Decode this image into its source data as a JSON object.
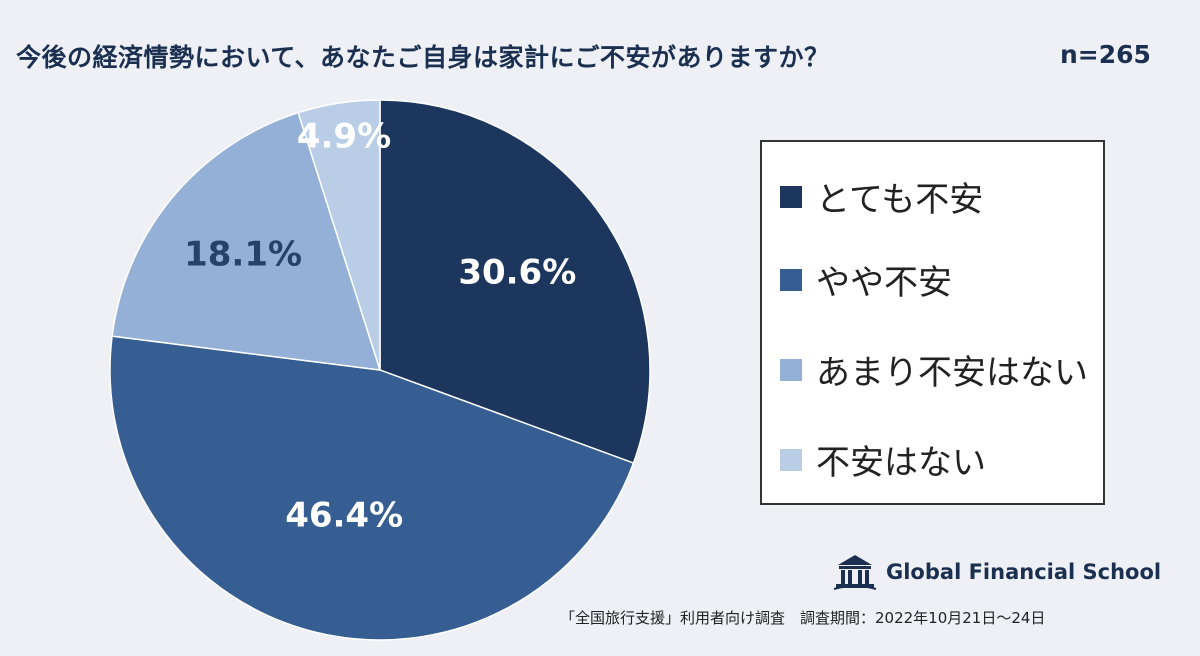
{
  "header": {
    "title": "今後の経済情勢において、あなたご自身は家計にご不安がありますか？",
    "sample_size": "n=265"
  },
  "chart_data": {
    "type": "pie",
    "start_angle_deg": 0,
    "direction": "clockwise",
    "categories": [
      "とても不安",
      "やや不安",
      "あまり不安はない",
      "不安はない"
    ],
    "values": [
      30.6,
      46.4,
      18.1,
      4.9
    ],
    "value_labels": [
      "30.6%",
      "46.4%",
      "18.1%",
      "4.9%"
    ],
    "colors": [
      "#1c365e",
      "#365e92",
      "#95b0d6",
      "#b9cde6"
    ],
    "label_colors": [
      "#ffffff",
      "#ffffff",
      "#26426b",
      "#ffffff"
    ],
    "legend_position": "right"
  },
  "legend": {
    "items": [
      {
        "label": "とても不安",
        "color": "#1c365e"
      },
      {
        "label": "やや不安",
        "color": "#365e92"
      },
      {
        "label": "あまり不安はない",
        "color": "#95b0d6"
      },
      {
        "label": "不安はない",
        "color": "#b9cde6"
      }
    ]
  },
  "brand": {
    "name": "Global Financial School",
    "icon": "school-building-icon"
  },
  "footnote": "「全国旅行支援」利用者向け調査　調査期間：2022年10月21日～24日"
}
